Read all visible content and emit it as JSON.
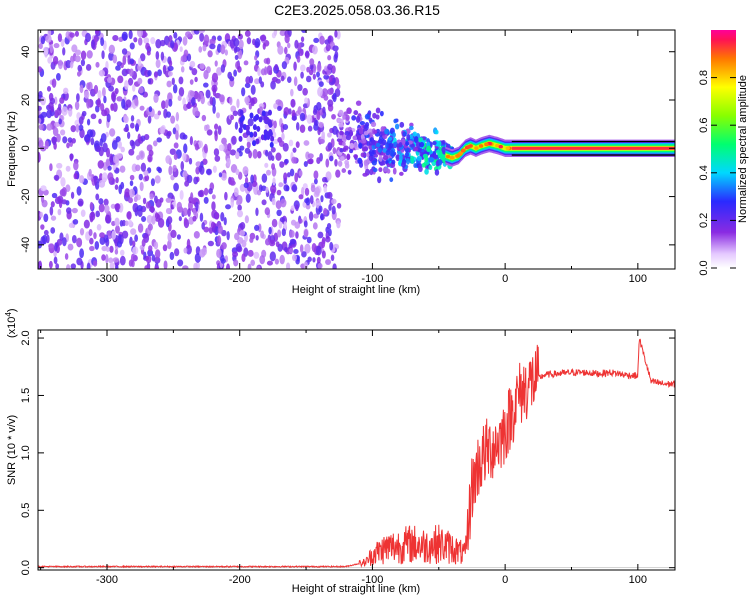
{
  "figure": {
    "title": "C2E3.2025.058.03.36.R15"
  },
  "chart_data": [
    {
      "type": "heatmap",
      "title": "C2E3.2025.058.03.36.R15",
      "xlabel": "Height of straight line (km)",
      "ylabel": "Frequency (Hz)",
      "xlim": [
        -352,
        128
      ],
      "ylim": [
        -50,
        49
      ],
      "xticks": [
        -300,
        -200,
        -100,
        0,
        100
      ],
      "xtick_labels": [
        "-300",
        "-200",
        "-100",
        "0",
        "100"
      ],
      "yticks": [
        -40,
        -20,
        0,
        20,
        40
      ],
      "ytick_labels": [
        "-40",
        "-20",
        "0",
        "20",
        "40"
      ],
      "colorbar": {
        "label": "Normalized spectral amplitude",
        "range": [
          0.0,
          1.0
        ],
        "ticks": [
          0.0,
          0.2,
          0.4,
          0.6,
          0.8
        ],
        "tick_labels": [
          "0.0",
          "0.2",
          "0.4",
          "0.6",
          "0.8"
        ]
      },
      "regions": [
        {
          "name": "broadband noise",
          "x_range": [
            -352,
            -125
          ],
          "freq_range": [
            -50,
            49
          ],
          "amplitude": 0.15
        },
        {
          "name": "noise cluster",
          "x_range": [
            -200,
            -175
          ],
          "freq_center": 8,
          "amplitude": 0.18
        },
        {
          "name": "transition",
          "x_range": [
            -125,
            -40
          ],
          "freq_center": 3,
          "freq_spread": 8,
          "amplitude": 0.35
        },
        {
          "name": "carrier",
          "x_range": [
            -40,
            128
          ],
          "freq": 0,
          "amplitude": 0.92
        }
      ],
      "carrier_track": {
        "x": [
          -45,
          -40,
          -35,
          -30,
          -26,
          -22,
          -18,
          -12,
          -5,
          0,
          5,
          128
        ],
        "freq": [
          -3,
          -4,
          -3,
          0,
          1,
          0,
          1,
          2,
          1,
          0,
          0,
          0
        ]
      }
    },
    {
      "type": "line",
      "xlabel": "Height of straight line (km)",
      "ylabel": "SNR (10 * v/v)",
      "y_scale_label": "(x10",
      "y_scale_exponent": "4",
      "y_scale_suffix": ")",
      "xlim": [
        -352,
        128
      ],
      "ylim": [
        -0.02,
        2.07
      ],
      "xticks": [
        -300,
        -200,
        -100,
        0,
        100
      ],
      "xtick_labels": [
        "-300",
        "-200",
        "-100",
        "0",
        "100"
      ],
      "yticks": [
        0.0,
        0.5,
        1.0,
        1.5,
        2.0
      ],
      "ytick_labels": [
        "0.0",
        "0.5",
        "1.0",
        "1.5",
        "2.0"
      ],
      "series_color": "#ee3333",
      "series": [
        {
          "x": [
            -352,
            -300,
            -200,
            -120,
            -105,
            -100,
            -90,
            -80,
            -70,
            -60,
            -50,
            -40,
            -30,
            -25,
            -20,
            -15,
            -10,
            -5,
            0,
            5,
            10,
            20,
            30,
            40,
            50,
            60,
            70,
            80,
            90,
            100,
            101,
            110,
            120,
            128
          ],
          "y": [
            0.01,
            0.01,
            0.01,
            0.01,
            0.05,
            0.12,
            0.18,
            0.2,
            0.22,
            0.2,
            0.22,
            0.18,
            0.12,
            0.7,
            0.9,
            1.0,
            1.05,
            1.1,
            1.2,
            1.35,
            1.5,
            1.62,
            1.68,
            1.69,
            1.7,
            1.7,
            1.69,
            1.7,
            1.68,
            1.67,
            2.0,
            1.62,
            1.6,
            1.6
          ]
        }
      ]
    }
  ]
}
